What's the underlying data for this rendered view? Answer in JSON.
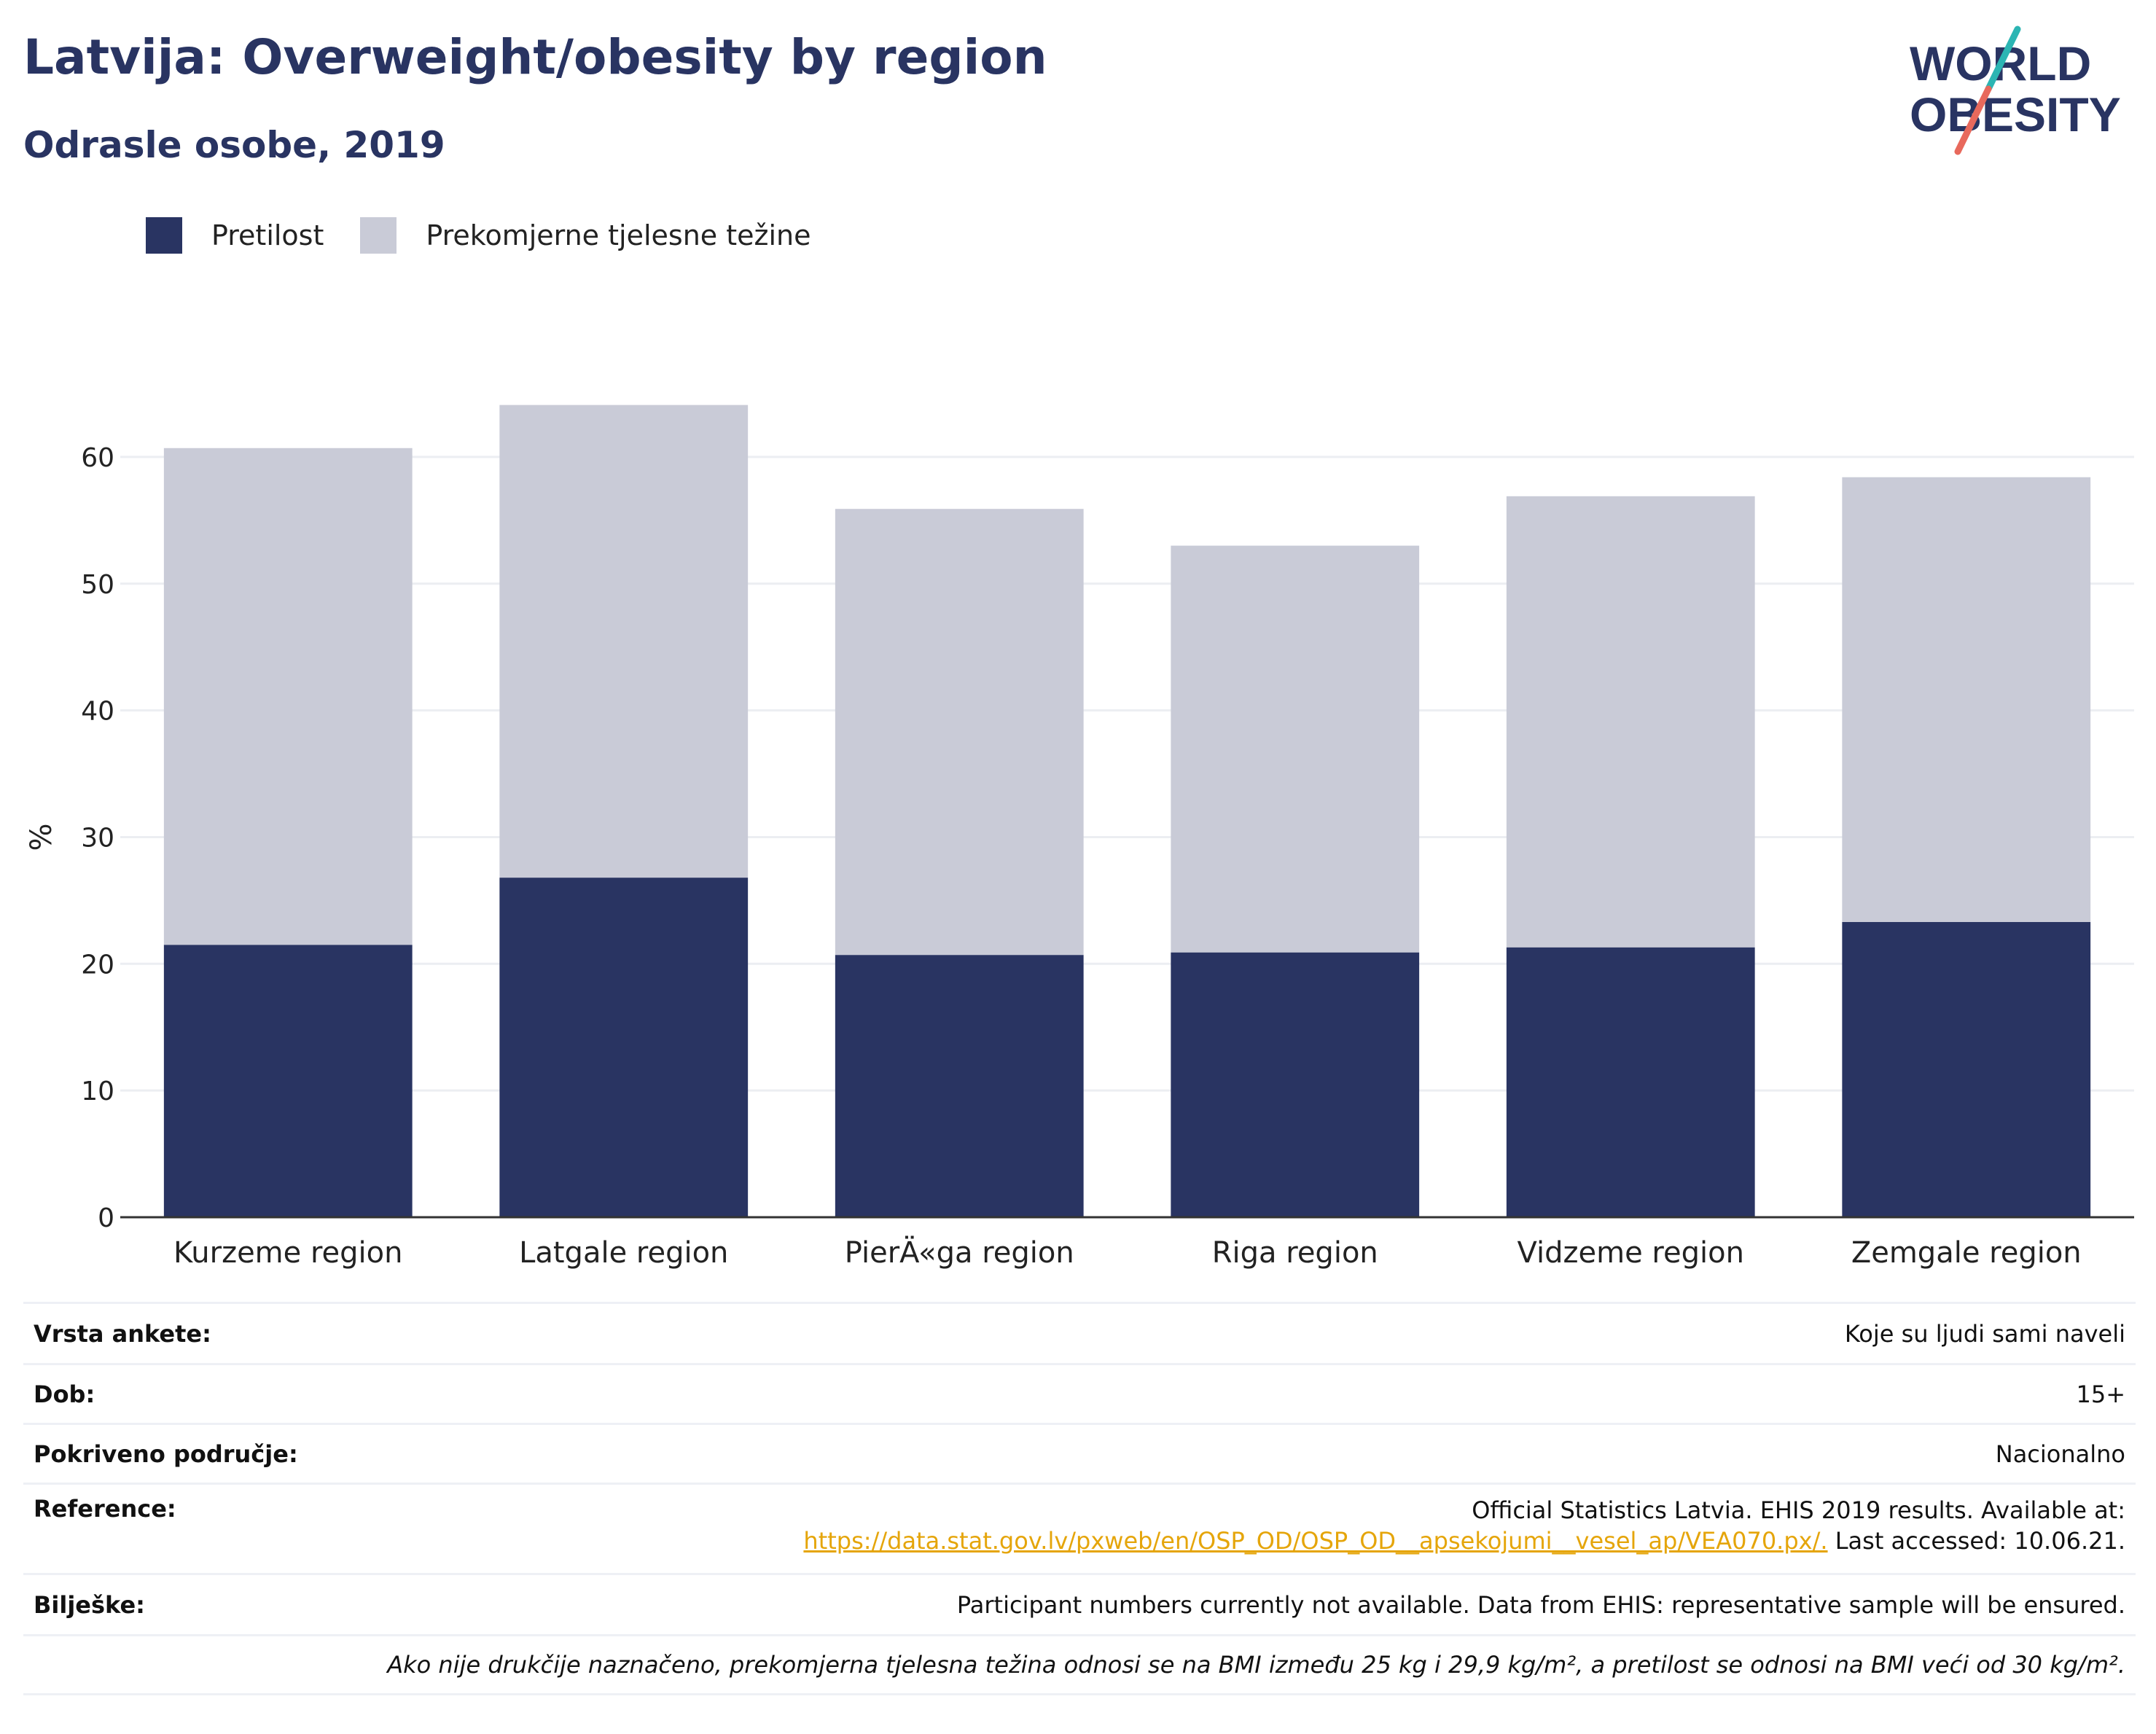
{
  "header": {
    "title": "Latvija: Overweight/obesity by region",
    "subtitle": "Odrasle osobe, 2019"
  },
  "logo": {
    "line1": "WORLD",
    "line2": "OBESITY"
  },
  "legend": [
    {
      "label": "Pretilost",
      "color": "#293462"
    },
    {
      "label": "Prekomjerne tjelesne težine",
      "color": "#c9cbd7"
    }
  ],
  "chart_data": {
    "type": "bar",
    "stacked": true,
    "ylabel": "%",
    "ylim": [
      0,
      65
    ],
    "yticks": [
      0,
      10,
      20,
      30,
      40,
      50,
      60
    ],
    "grid": true,
    "categories": [
      "Kurzeme region",
      "Latgale region",
      "PierÄ«ga region",
      "Riga region",
      "Vidzeme region",
      "Zemgale region"
    ],
    "series": [
      {
        "name": "Pretilost",
        "color": "#293462",
        "values": [
          21.5,
          26.8,
          20.7,
          20.9,
          21.3,
          23.3
        ]
      },
      {
        "name": "Prekomjerne tjelesne težine",
        "color": "#c9cbd7",
        "values": [
          39.2,
          37.3,
          35.2,
          32.1,
          35.6,
          35.1
        ]
      }
    ]
  },
  "info": {
    "rows": [
      {
        "label": "Vrsta ankete:",
        "value": "Koje su ljudi sami naveli"
      },
      {
        "label": "Dob:",
        "value": "15+"
      },
      {
        "label": "Pokriveno područje:",
        "value": "Nacionalno"
      },
      {
        "label": "Reference:",
        "value": "Official Statistics Latvia. EHIS 2019 results. Available at:",
        "link": "https://data.stat.gov.lv/pxweb/en/OSP_OD/OSP_OD__apsekojumi__vesel_ap/VEA070.px/.",
        "suffix": " Last accessed: 10.06.21."
      },
      {
        "label": "Bilješke:",
        "value": "Participant numbers currently not available. Data from EHIS: representative sample will be ensured."
      }
    ],
    "footnote": "Ako nije drukčije naznačeno, prekomjerna tjelesna težina odnosi se na BMI između 25 kg i 29,9 kg/m², a pretilost se odnosi na BMI veći od 30 kg/m²."
  }
}
